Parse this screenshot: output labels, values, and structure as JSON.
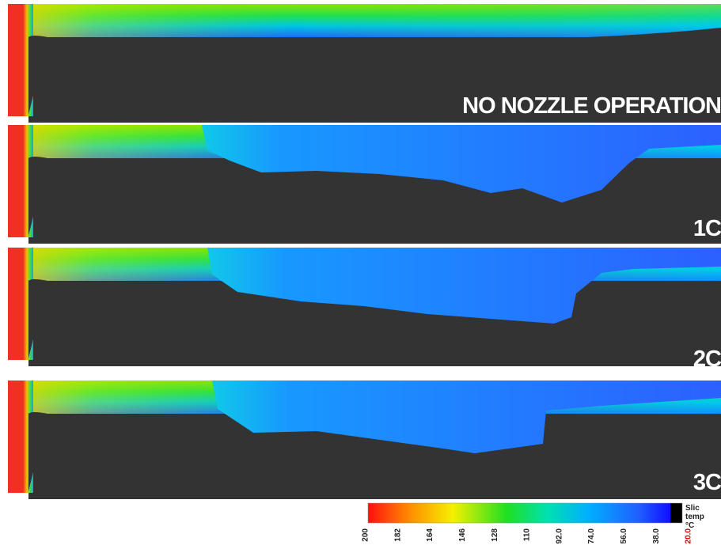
{
  "panels": [
    {
      "label": "NO NOZZLE OPERATION"
    },
    {
      "label": "1C"
    },
    {
      "label": "2C"
    },
    {
      "label": "3C"
    }
  ],
  "colorbar": {
    "title": [
      "Slic",
      "temp",
      "°C"
    ],
    "ticks": [
      "200",
      "182",
      "164",
      "146",
      "128",
      "110",
      "92.0",
      "74.0",
      "56.0",
      "38.0",
      "20.0"
    ]
  }
}
